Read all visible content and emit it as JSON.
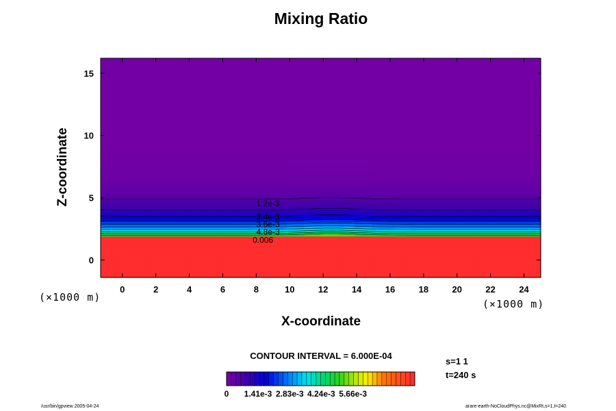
{
  "chart_data": {
    "type": "contour",
    "title": "Mixing Ratio",
    "xlabel": "X-coordinate",
    "ylabel": "Z-coordinate",
    "x_unit": "(×1000 m)",
    "y_unit": "(×1000 m)",
    "xlim": [
      -1.3,
      25
    ],
    "ylim": [
      -1.4,
      16.2
    ],
    "x_ticks": [
      0,
      2,
      4,
      6,
      8,
      10,
      12,
      14,
      16,
      18,
      20,
      22,
      24
    ],
    "y_ticks": [
      0,
      5,
      10,
      15
    ],
    "contour_interval_text": "CONTOUR INTERVAL = 6.000E-04",
    "contour_interval": 0.0006,
    "value_range": [
      0,
      0.0085
    ],
    "contour_labels": [
      {
        "text": "1.2e-3",
        "x": 8.7,
        "z": 4.55
      },
      {
        "text": "2.4e-3",
        "x": 8.7,
        "z": 3.47
      },
      {
        "text": "3.6e-3",
        "x": 8.7,
        "z": 2.85
      },
      {
        "text": "4.8e-3",
        "x": 8.7,
        "z": 2.25
      },
      {
        "text": "0.006",
        "x": 8.4,
        "z": 1.6
      }
    ],
    "colorbar_labels": [
      "0",
      "1.41e-3",
      "2.83e-3",
      "4.24e-3",
      "5.66e-3"
    ],
    "colorbar_ticks": [
      0,
      0.00141,
      0.00283,
      0.00424,
      0.00566
    ],
    "grid": false
  },
  "info": {
    "s_label": "s=1 1",
    "t_label": "t=240 s"
  },
  "footer": {
    "left": "/usr/bin/gpview 2005-04-24",
    "right": "arare-earth-NoCloudPhys.nc@MixRt,s=1,t=240"
  }
}
